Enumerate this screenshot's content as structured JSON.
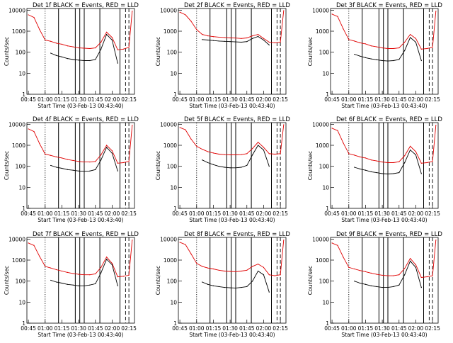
{
  "figure": {
    "panel_titles": [
      "Det 1f BLACK = Events, RED = LLD",
      "Det 2f BLACK = Events, RED = LLD",
      "Det 3f BLACK = Events, RED = LLD",
      "Det 4f BLACK = Events, RED = LLD",
      "Det 5f BLACK = Events, RED = LLD",
      "Det 6f BLACK = Events, RED = LLD",
      "Det 7f BLACK = Events, RED = LLD",
      "Det 8f BLACK = Events, RED = LLD",
      "Det 9f BLACK = Events, RED = LLD"
    ],
    "xlabel": "Start Time (03-Feb-13 00:43:40)",
    "ylabel": "Counts/sec",
    "x_tick_labels": [
      "00:45",
      "01:00",
      "01:15",
      "01:30",
      "01:45",
      "02:00",
      "02:15"
    ],
    "y_tick_labels": [
      "1",
      "10",
      "100",
      "1000",
      "10000"
    ],
    "colors": {
      "events": "#000000",
      "lld": "#e00000"
    }
  },
  "chart_data": [
    {
      "type": "line",
      "title": "Det 1f BLACK = Events, RED = LLD",
      "xlabel": "Start Time (03-Feb-13 00:43:40)",
      "ylabel": "Counts/sec",
      "ylim": [
        1,
        12000
      ],
      "yscale": "log",
      "xlim": [
        "00:43:40",
        "02:20:00"
      ],
      "x": [
        "00:45",
        "00:50",
        "00:55",
        "01:00",
        "01:05",
        "01:10",
        "01:15",
        "01:20",
        "01:25",
        "01:30",
        "01:35",
        "01:40",
        "01:45",
        "01:50",
        "01:55",
        "02:00",
        "02:05",
        "02:10",
        "02:15",
        "02:18"
      ],
      "series": [
        {
          "name": "LLD",
          "values": [
            6000,
            4500,
            1200,
            380,
            330,
            270,
            240,
            200,
            180,
            160,
            155,
            150,
            160,
            300,
            900,
            500,
            130,
            140,
            170,
            9000
          ]
        },
        {
          "name": "Events",
          "values": [
            null,
            null,
            null,
            null,
            90,
            70,
            60,
            50,
            45,
            42,
            40,
            40,
            45,
            140,
            700,
            380,
            30,
            null,
            null,
            null
          ]
        }
      ],
      "vlines": {
        "dotted": [
          "01:00"
        ],
        "solid": [
          "01:12",
          "01:27",
          "01:31",
          "01:35",
          "01:49",
          "02:07"
        ],
        "dashed": [
          "02:07",
          "02:12",
          "02:15"
        ]
      }
    },
    {
      "type": "line",
      "title": "Det 2f BLACK = Events, RED = LLD",
      "xlabel": "Start Time (03-Feb-13 00:43:40)",
      "ylabel": "Counts/sec",
      "ylim": [
        1,
        12000
      ],
      "yscale": "log",
      "xlim": [
        "00:43:40",
        "02:20:00"
      ],
      "x": [
        "00:45",
        "00:50",
        "00:55",
        "01:00",
        "01:05",
        "01:10",
        "01:15",
        "01:20",
        "01:25",
        "01:30",
        "01:35",
        "01:40",
        "01:45",
        "01:50",
        "01:55",
        "02:00",
        "02:05",
        "02:10",
        "02:15",
        "02:18"
      ],
      "series": [
        {
          "name": "LLD",
          "values": [
            8000,
            6000,
            3000,
            1200,
            700,
            600,
            550,
            520,
            500,
            480,
            470,
            450,
            480,
            600,
            700,
            450,
            300,
            280,
            300,
            9500
          ]
        },
        {
          "name": "Events",
          "values": [
            null,
            null,
            null,
            null,
            400,
            380,
            360,
            340,
            330,
            320,
            310,
            300,
            320,
            450,
            560,
            380,
            220,
            null,
            null,
            null
          ]
        }
      ],
      "vlines": {
        "dotted": [
          "01:00"
        ],
        "solid": [
          "01:12",
          "01:27",
          "01:31",
          "01:35",
          "01:49",
          "02:07"
        ],
        "dashed": [
          "02:07",
          "02:12",
          "02:15"
        ]
      }
    },
    {
      "type": "line",
      "title": "Det 3f BLACK = Events, RED = LLD",
      "xlabel": "Start Time (03-Feb-13 00:43:40)",
      "ylabel": "Counts/sec",
      "ylim": [
        1,
        12000
      ],
      "yscale": "log",
      "xlim": [
        "00:43:40",
        "02:20:00"
      ],
      "x": [
        "00:45",
        "00:50",
        "00:55",
        "01:00",
        "01:05",
        "01:10",
        "01:15",
        "01:20",
        "01:25",
        "01:30",
        "01:35",
        "01:40",
        "01:45",
        "01:50",
        "01:55",
        "02:00",
        "02:05",
        "02:10",
        "02:15",
        "02:18"
      ],
      "series": [
        {
          "name": "LLD",
          "values": [
            6500,
            5000,
            1300,
            400,
            340,
            280,
            250,
            200,
            180,
            160,
            150,
            150,
            160,
            300,
            700,
            450,
            140,
            150,
            170,
            9000
          ]
        },
        {
          "name": "Events",
          "values": [
            null,
            null,
            null,
            null,
            80,
            65,
            55,
            48,
            44,
            40,
            38,
            40,
            45,
            120,
            500,
            300,
            40,
            null,
            null,
            null
          ]
        }
      ],
      "vlines": {
        "dotted": [
          "01:00"
        ],
        "solid": [
          "01:12",
          "01:27",
          "01:31",
          "01:35",
          "01:49",
          "02:07"
        ],
        "dashed": [
          "02:07",
          "02:12",
          "02:15"
        ]
      }
    },
    {
      "type": "line",
      "title": "Det 4f BLACK = Events, RED = LLD",
      "xlabel": "Start Time (03-Feb-13 00:43:40)",
      "ylabel": "Counts/sec",
      "ylim": [
        1,
        12000
      ],
      "yscale": "log",
      "xlim": [
        "00:43:40",
        "02:20:00"
      ],
      "x": [
        "00:45",
        "00:50",
        "00:55",
        "01:00",
        "01:05",
        "01:10",
        "01:15",
        "01:20",
        "01:25",
        "01:30",
        "01:35",
        "01:40",
        "01:45",
        "01:50",
        "01:55",
        "02:00",
        "02:05",
        "02:10",
        "02:15",
        "02:18"
      ],
      "series": [
        {
          "name": "LLD",
          "values": [
            6000,
            4500,
            1200,
            380,
            330,
            280,
            250,
            210,
            190,
            170,
            160,
            160,
            170,
            350,
            1000,
            550,
            140,
            150,
            170,
            9000
          ]
        },
        {
          "name": "Events",
          "values": [
            null,
            null,
            null,
            null,
            110,
            90,
            80,
            70,
            65,
            60,
            58,
            60,
            70,
            200,
            800,
            420,
            60,
            null,
            null,
            null
          ]
        }
      ],
      "vlines": {
        "dotted": [
          "01:00"
        ],
        "solid": [
          "01:12",
          "01:27",
          "01:31",
          "01:35",
          "01:49",
          "02:07"
        ],
        "dashed": [
          "02:07",
          "02:12",
          "02:15"
        ]
      }
    },
    {
      "type": "line",
      "title": "Det 5f BLACK = Events, RED = LLD",
      "xlabel": "Start Time (03-Feb-13 00:43:40)",
      "ylabel": "Counts/sec",
      "ylim": [
        1,
        12000
      ],
      "yscale": "log",
      "xlim": [
        "00:43:40",
        "02:20:00"
      ],
      "x": [
        "00:45",
        "00:50",
        "00:55",
        "01:00",
        "01:05",
        "01:10",
        "01:15",
        "01:20",
        "01:25",
        "01:30",
        "01:35",
        "01:40",
        "01:45",
        "01:50",
        "01:55",
        "02:00",
        "02:05",
        "02:10",
        "02:15",
        "02:18"
      ],
      "series": [
        {
          "name": "LLD",
          "values": [
            7000,
            5500,
            2000,
            900,
            650,
            500,
            430,
            380,
            360,
            350,
            350,
            360,
            400,
            700,
            1400,
            800,
            400,
            380,
            400,
            9500
          ]
        },
        {
          "name": "Events",
          "values": [
            null,
            null,
            null,
            null,
            200,
            150,
            120,
            100,
            90,
            85,
            85,
            90,
            110,
            350,
            1000,
            600,
            100,
            null,
            null,
            null
          ]
        }
      ],
      "vlines": {
        "dotted": [
          "01:00"
        ],
        "solid": [
          "01:12",
          "01:27",
          "01:31",
          "01:35",
          "01:49",
          "02:07"
        ],
        "dashed": [
          "02:07",
          "02:12",
          "02:15"
        ]
      }
    },
    {
      "type": "line",
      "title": "Det 6f BLACK = Events, RED = LLD",
      "xlabel": "Start Time (03-Feb-13 00:43:40)",
      "ylabel": "Counts/sec",
      "ylim": [
        1,
        12000
      ],
      "yscale": "log",
      "xlim": [
        "00:43:40",
        "02:20:00"
      ],
      "x": [
        "00:45",
        "00:50",
        "00:55",
        "01:00",
        "01:05",
        "01:10",
        "01:15",
        "01:20",
        "01:25",
        "01:30",
        "01:35",
        "01:40",
        "01:45",
        "01:50",
        "01:55",
        "02:00",
        "02:05",
        "02:10",
        "02:15",
        "02:18"
      ],
      "series": [
        {
          "name": "LLD",
          "values": [
            6500,
            5000,
            1300,
            400,
            340,
            280,
            250,
            200,
            180,
            160,
            150,
            150,
            165,
            320,
            900,
            500,
            140,
            150,
            170,
            9000
          ]
        },
        {
          "name": "Events",
          "values": [
            null,
            null,
            null,
            null,
            90,
            75,
            65,
            55,
            50,
            45,
            43,
            45,
            50,
            150,
            600,
            350,
            45,
            null,
            null,
            null
          ]
        }
      ],
      "vlines": {
        "dotted": [
          "01:00"
        ],
        "solid": [
          "01:12",
          "01:27",
          "01:31",
          "01:35",
          "01:49",
          "02:07"
        ],
        "dashed": [
          "02:07",
          "02:12",
          "02:15"
        ]
      }
    },
    {
      "type": "line",
      "title": "Det 7f BLACK = Events, RED = LLD",
      "xlabel": "Start Time (03-Feb-13 00:43:40)",
      "ylabel": "Counts/sec",
      "ylim": [
        1,
        12000
      ],
      "yscale": "log",
      "xlim": [
        "00:43:40",
        "02:20:00"
      ],
      "x": [
        "00:45",
        "00:50",
        "00:55",
        "01:00",
        "01:05",
        "01:10",
        "01:15",
        "01:20",
        "01:25",
        "01:30",
        "01:35",
        "01:40",
        "01:45",
        "01:50",
        "01:55",
        "02:00",
        "02:05",
        "02:10",
        "02:15",
        "02:18"
      ],
      "series": [
        {
          "name": "LLD",
          "values": [
            6500,
            5000,
            1500,
            500,
            420,
            350,
            300,
            260,
            230,
            210,
            200,
            200,
            220,
            450,
            1400,
            700,
            160,
            170,
            190,
            9000
          ]
        },
        {
          "name": "Events",
          "values": [
            null,
            null,
            null,
            null,
            110,
            90,
            80,
            70,
            65,
            60,
            60,
            65,
            75,
            250,
            1100,
            600,
            60,
            null,
            null,
            null
          ]
        }
      ],
      "vlines": {
        "dotted": [
          "01:00"
        ],
        "solid": [
          "01:12",
          "01:27",
          "01:31",
          "01:35",
          "01:49",
          "02:07"
        ],
        "dashed": [
          "02:07",
          "02:12",
          "02:15"
        ]
      }
    },
    {
      "type": "line",
      "title": "Det 8f BLACK = Events, RED = LLD",
      "xlabel": "Start Time (03-Feb-13 00:43:40)",
      "ylabel": "Counts/sec",
      "ylim": [
        1,
        12000
      ],
      "yscale": "log",
      "xlim": [
        "00:43:40",
        "02:20:00"
      ],
      "x": [
        "00:45",
        "00:50",
        "00:55",
        "01:00",
        "01:05",
        "01:10",
        "01:15",
        "01:20",
        "01:25",
        "01:30",
        "01:35",
        "01:40",
        "01:45",
        "01:50",
        "01:55",
        "02:00",
        "02:05",
        "02:10",
        "02:15",
        "02:18"
      ],
      "series": [
        {
          "name": "LLD",
          "values": [
            7000,
            5500,
            2000,
            700,
            500,
            420,
            380,
            330,
            300,
            290,
            280,
            300,
            330,
            500,
            650,
            450,
            200,
            180,
            200,
            9000
          ]
        },
        {
          "name": "Events",
          "values": [
            null,
            null,
            null,
            null,
            90,
            70,
            60,
            55,
            50,
            48,
            47,
            50,
            55,
            100,
            300,
            200,
            30,
            null,
            null,
            null
          ]
        }
      ],
      "vlines": {
        "dotted": [
          "01:00"
        ],
        "solid": [
          "01:12",
          "01:27",
          "01:31",
          "01:35",
          "01:49",
          "02:07"
        ],
        "dashed": [
          "02:07",
          "02:12",
          "02:15"
        ]
      }
    },
    {
      "type": "line",
      "title": "Det 9f BLACK = Events, RED = LLD",
      "xlabel": "Start Time (03-Feb-13 00:43:40)",
      "ylabel": "Counts/sec",
      "ylim": [
        1,
        12000
      ],
      "yscale": "log",
      "xlim": [
        "00:43:40",
        "02:20:00"
      ],
      "x": [
        "00:45",
        "00:50",
        "00:55",
        "01:00",
        "01:05",
        "01:10",
        "01:15",
        "01:20",
        "01:25",
        "01:30",
        "01:35",
        "01:40",
        "01:45",
        "01:50",
        "01:55",
        "02:00",
        "02:05",
        "02:10",
        "02:15",
        "02:18"
      ],
      "series": [
        {
          "name": "LLD",
          "values": [
            6500,
            5000,
            1400,
            450,
            380,
            320,
            280,
            240,
            210,
            190,
            180,
            180,
            200,
            400,
            1200,
            600,
            150,
            160,
            180,
            9000
          ]
        },
        {
          "name": "Events",
          "values": [
            null,
            null,
            null,
            null,
            100,
            80,
            70,
            60,
            55,
            50,
            50,
            55,
            65,
            200,
            900,
            450,
            50,
            null,
            null,
            null
          ]
        }
      ],
      "vlines": {
        "dotted": [
          "01:00"
        ],
        "solid": [
          "01:12",
          "01:27",
          "01:31",
          "01:35",
          "01:49",
          "02:07"
        ],
        "dashed": [
          "02:07",
          "02:12",
          "02:15"
        ]
      }
    }
  ]
}
